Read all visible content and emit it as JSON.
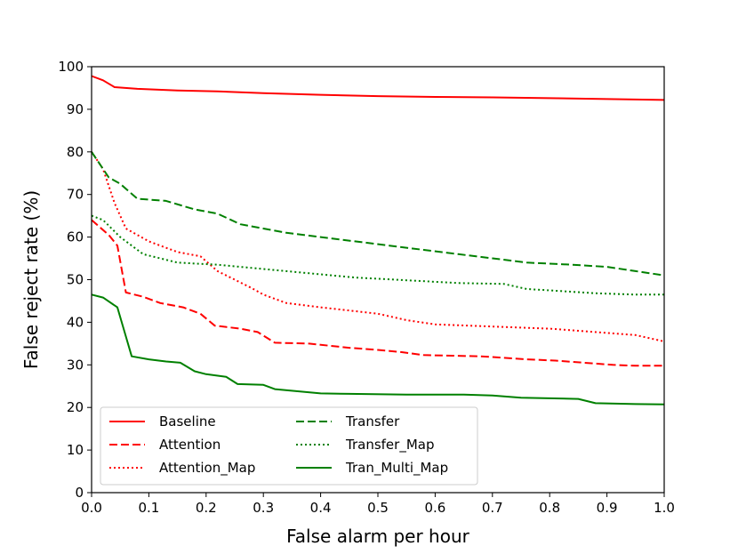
{
  "chart_data": {
    "type": "line",
    "title": "",
    "xlabel": "False alarm per hour",
    "ylabel": "False reject rate (%)",
    "xlim": [
      0.0,
      1.0
    ],
    "ylim": [
      0,
      100
    ],
    "xticks": [
      "0.0",
      "0.1",
      "0.2",
      "0.3",
      "0.4",
      "0.5",
      "0.6",
      "0.7",
      "0.8",
      "0.9",
      "1.0"
    ],
    "yticks": [
      "0",
      "10",
      "20",
      "30",
      "40",
      "50",
      "60",
      "70",
      "80",
      "90",
      "100"
    ],
    "grid": false,
    "legend_position": "lower-left",
    "series": [
      {
        "name": "Baseline",
        "color": "#ff0000",
        "style": "solid",
        "x": [
          0.0,
          0.02,
          0.04,
          0.08,
          0.15,
          0.22,
          0.3,
          0.4,
          0.5,
          0.6,
          0.7,
          0.8,
          0.9,
          1.0
        ],
        "y": [
          97.8,
          96.8,
          95.2,
          94.8,
          94.4,
          94.2,
          93.8,
          93.4,
          93.1,
          92.9,
          92.8,
          92.6,
          92.4,
          92.2
        ]
      },
      {
        "name": "Attention",
        "color": "#ff0000",
        "style": "dashed",
        "x": [
          0.0,
          0.03,
          0.045,
          0.06,
          0.09,
          0.12,
          0.16,
          0.19,
          0.215,
          0.26,
          0.29,
          0.32,
          0.38,
          0.45,
          0.5,
          0.54,
          0.58,
          0.68,
          0.76,
          0.81,
          0.86,
          0.91,
          0.95,
          1.0
        ],
        "y": [
          64.0,
          60.5,
          58.0,
          47.0,
          46.0,
          44.5,
          43.5,
          42.0,
          39.2,
          38.5,
          37.7,
          35.2,
          35.0,
          34.0,
          33.5,
          33.0,
          32.3,
          32.0,
          31.3,
          31.0,
          30.5,
          30.0,
          29.8,
          29.8
        ]
      },
      {
        "name": "Attention_Map",
        "color": "#ff0000",
        "style": "dotted",
        "x": [
          0.0,
          0.02,
          0.04,
          0.06,
          0.1,
          0.15,
          0.19,
          0.22,
          0.25,
          0.28,
          0.3,
          0.34,
          0.4,
          0.5,
          0.55,
          0.6,
          0.7,
          0.8,
          0.9,
          0.95,
          1.0
        ],
        "y": [
          80.0,
          76.0,
          68.0,
          62.0,
          59.0,
          56.5,
          55.5,
          52.0,
          50.0,
          48.0,
          46.5,
          44.5,
          43.5,
          42.0,
          40.5,
          39.5,
          39.0,
          38.5,
          37.5,
          37.0,
          35.5
        ]
      },
      {
        "name": "Transfer",
        "color": "#008000",
        "style": "dashed",
        "x": [
          0.0,
          0.03,
          0.05,
          0.08,
          0.13,
          0.18,
          0.22,
          0.26,
          0.3,
          0.34,
          0.4,
          0.46,
          0.52,
          0.58,
          0.64,
          0.7,
          0.76,
          0.84,
          0.9,
          0.95,
          1.0
        ],
        "y": [
          80.0,
          74.0,
          72.5,
          69.0,
          68.5,
          66.5,
          65.5,
          63.0,
          62.0,
          61.0,
          60.0,
          59.0,
          58.0,
          57.0,
          56.0,
          55.0,
          54.0,
          53.5,
          53.0,
          52.0,
          51.0
        ]
      },
      {
        "name": "Transfer_Map",
        "color": "#008000",
        "style": "dotted",
        "x": [
          0.0,
          0.02,
          0.05,
          0.09,
          0.15,
          0.22,
          0.3,
          0.38,
          0.46,
          0.56,
          0.64,
          0.72,
          0.76,
          0.8,
          0.88,
          0.95,
          1.0
        ],
        "y": [
          65.0,
          64.0,
          60.0,
          56.0,
          54.0,
          53.5,
          52.5,
          51.5,
          50.5,
          49.8,
          49.2,
          49.0,
          47.8,
          47.5,
          46.8,
          46.5,
          46.5
        ]
      },
      {
        "name": "Tran_Multi_Map",
        "color": "#008000",
        "style": "solid",
        "x": [
          0.0,
          0.02,
          0.045,
          0.07,
          0.1,
          0.13,
          0.155,
          0.18,
          0.2,
          0.235,
          0.255,
          0.3,
          0.32,
          0.36,
          0.4,
          0.45,
          0.55,
          0.65,
          0.7,
          0.75,
          0.85,
          0.88,
          0.95,
          1.0
        ],
        "y": [
          46.5,
          45.8,
          43.5,
          32.0,
          31.3,
          30.8,
          30.5,
          28.5,
          27.8,
          27.2,
          25.5,
          25.3,
          24.3,
          23.8,
          23.3,
          23.2,
          23.0,
          23.0,
          22.8,
          22.3,
          22.0,
          21.0,
          20.8,
          20.7
        ]
      }
    ]
  }
}
